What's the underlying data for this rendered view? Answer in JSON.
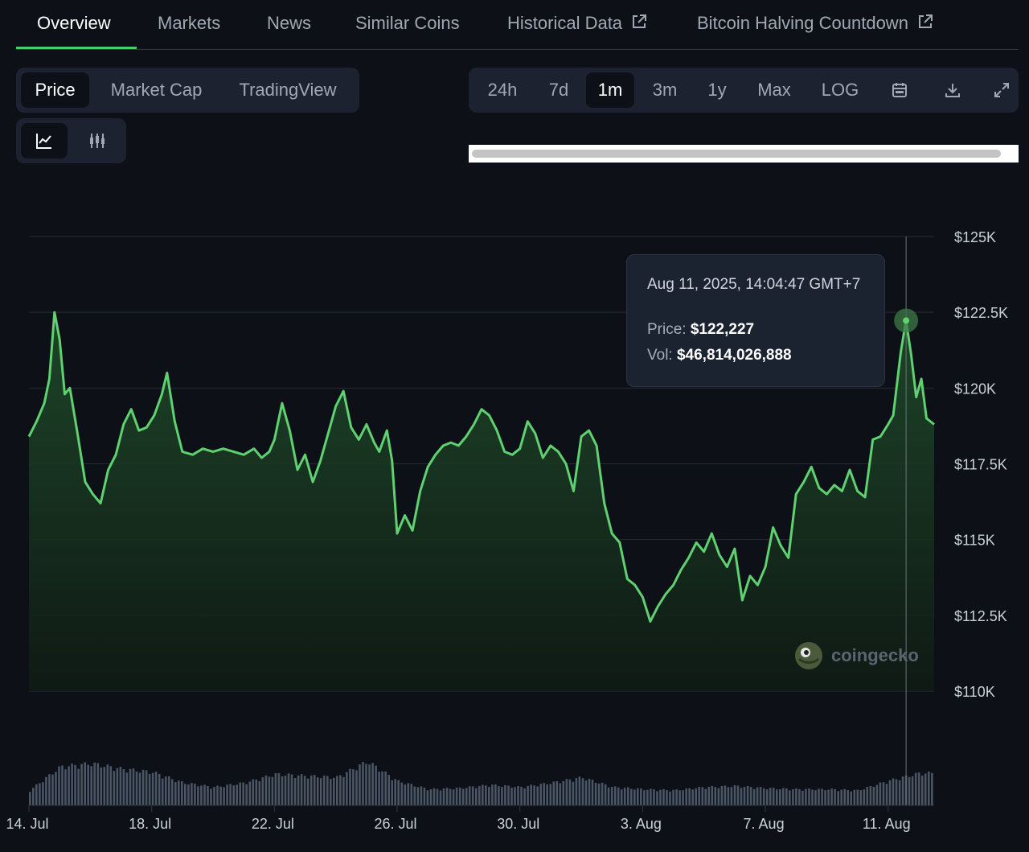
{
  "tabs": [
    {
      "label": "Overview",
      "active": true,
      "external": false
    },
    {
      "label": "Markets",
      "active": false,
      "external": false
    },
    {
      "label": "News",
      "active": false,
      "external": false
    },
    {
      "label": "Similar Coins",
      "active": false,
      "external": false
    },
    {
      "label": "Historical Data",
      "active": false,
      "external": true
    },
    {
      "label": "Bitcoin Halving Countdown",
      "active": false,
      "external": true
    }
  ],
  "chart_mode": {
    "options": [
      "Price",
      "Market Cap",
      "TradingView"
    ],
    "selected": "Price"
  },
  "chart_style": {
    "options": [
      "line-chart-icon",
      "candlestick-icon"
    ],
    "selected": "line-chart-icon"
  },
  "ranges": {
    "options": [
      "24h",
      "7d",
      "1m",
      "3m",
      "1y",
      "Max",
      "LOG"
    ],
    "selected": "1m",
    "icons": [
      "calendar-icon",
      "download-icon",
      "expand-icon"
    ]
  },
  "tooltip": {
    "date": "Aug 11, 2025, 14:04:47 GMT+7",
    "price_label": "Price:",
    "price_value": "$122,227",
    "vol_label": "Vol:",
    "vol_value": "$46,814,026,888"
  },
  "watermark": "coingecko",
  "colors": {
    "line": "#5fd170",
    "area_top": "#1f4a2a",
    "area_bottom": "#0f1a14",
    "background": "#0d1117",
    "volume": "#4a5566"
  },
  "chart_data": {
    "type": "area",
    "title": "",
    "xlabel": "",
    "ylabel": "",
    "currency": "USD",
    "ylim": [
      110000,
      125000
    ],
    "yticks": [
      110000,
      112500,
      115000,
      117500,
      120000,
      122500,
      125000
    ],
    "ytick_labels": [
      "$110K",
      "$112.5K",
      "$115K",
      "$117.5K",
      "$120K",
      "$122.5K",
      "$125K"
    ],
    "xlim": [
      "2025-07-14",
      "2025-08-12T12:00"
    ],
    "xticks": [
      "2025-07-14",
      "2025-07-18",
      "2025-07-22",
      "2025-07-26",
      "2025-07-30",
      "2025-08-03",
      "2025-08-07",
      "2025-08-11"
    ],
    "xtick_labels": [
      "14. Jul",
      "18. Jul",
      "22. Jul",
      "26. Jul",
      "30. Jul",
      "3. Aug",
      "7. Aug",
      "11. Aug"
    ],
    "grid": true,
    "series": [
      {
        "values": [
          [
            "2025-07-14T00:00",
            118400
          ],
          [
            "2025-07-14T06:00",
            118900
          ],
          [
            "2025-07-14T12:00",
            119500
          ],
          [
            "2025-07-14T16:00",
            120300
          ],
          [
            "2025-07-14T20:00",
            122500
          ],
          [
            "2025-07-15T00:00",
            121600
          ],
          [
            "2025-07-15T04:00",
            119800
          ],
          [
            "2025-07-15T08:00",
            120000
          ],
          [
            "2025-07-15T14:00",
            118500
          ],
          [
            "2025-07-15T20:00",
            116900
          ],
          [
            "2025-07-16T02:00",
            116500
          ],
          [
            "2025-07-16T08:00",
            116200
          ],
          [
            "2025-07-16T14:00",
            117300
          ],
          [
            "2025-07-16T20:00",
            117800
          ],
          [
            "2025-07-17T02:00",
            118800
          ],
          [
            "2025-07-17T08:00",
            119300
          ],
          [
            "2025-07-17T14:00",
            118600
          ],
          [
            "2025-07-17T20:00",
            118700
          ],
          [
            "2025-07-18T02:00",
            119100
          ],
          [
            "2025-07-18T08:00",
            119800
          ],
          [
            "2025-07-18T12:00",
            120500
          ],
          [
            "2025-07-18T18:00",
            118900
          ],
          [
            "2025-07-19T00:00",
            117900
          ],
          [
            "2025-07-19T08:00",
            117800
          ],
          [
            "2025-07-19T16:00",
            118000
          ],
          [
            "2025-07-20T00:00",
            117900
          ],
          [
            "2025-07-20T08:00",
            118000
          ],
          [
            "2025-07-20T16:00",
            117900
          ],
          [
            "2025-07-21T00:00",
            117800
          ],
          [
            "2025-07-21T08:00",
            118000
          ],
          [
            "2025-07-21T14:00",
            117700
          ],
          [
            "2025-07-21T20:00",
            117900
          ],
          [
            "2025-07-22T00:00",
            118300
          ],
          [
            "2025-07-22T06:00",
            119500
          ],
          [
            "2025-07-22T12:00",
            118600
          ],
          [
            "2025-07-22T18:00",
            117300
          ],
          [
            "2025-07-23T00:00",
            117800
          ],
          [
            "2025-07-23T06:00",
            116900
          ],
          [
            "2025-07-23T12:00",
            117600
          ],
          [
            "2025-07-23T18:00",
            118500
          ],
          [
            "2025-07-24T00:00",
            119400
          ],
          [
            "2025-07-24T06:00",
            119900
          ],
          [
            "2025-07-24T12:00",
            118700
          ],
          [
            "2025-07-24T18:00",
            118300
          ],
          [
            "2025-07-25T00:00",
            118800
          ],
          [
            "2025-07-25T06:00",
            118200
          ],
          [
            "2025-07-25T10:00",
            117900
          ],
          [
            "2025-07-25T16:00",
            118600
          ],
          [
            "2025-07-25T20:00",
            117600
          ],
          [
            "2025-07-26T00:00",
            115200
          ],
          [
            "2025-07-26T06:00",
            115800
          ],
          [
            "2025-07-26T12:00",
            115300
          ],
          [
            "2025-07-26T18:00",
            116600
          ],
          [
            "2025-07-27T00:00",
            117400
          ],
          [
            "2025-07-27T06:00",
            117800
          ],
          [
            "2025-07-27T12:00",
            118100
          ],
          [
            "2025-07-27T18:00",
            118200
          ],
          [
            "2025-07-28T00:00",
            118100
          ],
          [
            "2025-07-28T06:00",
            118400
          ],
          [
            "2025-07-28T12:00",
            118800
          ],
          [
            "2025-07-28T18:00",
            119300
          ],
          [
            "2025-07-29T00:00",
            119100
          ],
          [
            "2025-07-29T06:00",
            118600
          ],
          [
            "2025-07-29T12:00",
            117900
          ],
          [
            "2025-07-29T18:00",
            117800
          ],
          [
            "2025-07-30T00:00",
            118000
          ],
          [
            "2025-07-30T06:00",
            118900
          ],
          [
            "2025-07-30T12:00",
            118500
          ],
          [
            "2025-07-30T18:00",
            117700
          ],
          [
            "2025-07-31T00:00",
            118100
          ],
          [
            "2025-07-31T06:00",
            117900
          ],
          [
            "2025-07-31T12:00",
            117500
          ],
          [
            "2025-07-31T18:00",
            116600
          ],
          [
            "2025-08-01T00:00",
            118400
          ],
          [
            "2025-08-01T06:00",
            118600
          ],
          [
            "2025-08-01T12:00",
            118100
          ],
          [
            "2025-08-01T18:00",
            116200
          ],
          [
            "2025-08-02T00:00",
            115200
          ],
          [
            "2025-08-02T06:00",
            114900
          ],
          [
            "2025-08-02T12:00",
            113700
          ],
          [
            "2025-08-02T18:00",
            113500
          ],
          [
            "2025-08-03T00:00",
            113100
          ],
          [
            "2025-08-03T06:00",
            112300
          ],
          [
            "2025-08-03T12:00",
            112800
          ],
          [
            "2025-08-03T18:00",
            113200
          ],
          [
            "2025-08-04T00:00",
            113500
          ],
          [
            "2025-08-04T06:00",
            114000
          ],
          [
            "2025-08-04T12:00",
            114400
          ],
          [
            "2025-08-04T18:00",
            114900
          ],
          [
            "2025-08-05T00:00",
            114600
          ],
          [
            "2025-08-05T06:00",
            115200
          ],
          [
            "2025-08-05T12:00",
            114500
          ],
          [
            "2025-08-05T18:00",
            114100
          ],
          [
            "2025-08-06T00:00",
            114700
          ],
          [
            "2025-08-06T06:00",
            113000
          ],
          [
            "2025-08-06T12:00",
            113800
          ],
          [
            "2025-08-06T18:00",
            113500
          ],
          [
            "2025-08-07T00:00",
            114100
          ],
          [
            "2025-08-07T06:00",
            115400
          ],
          [
            "2025-08-07T12:00",
            114800
          ],
          [
            "2025-08-07T18:00",
            114400
          ],
          [
            "2025-08-08T00:00",
            116500
          ],
          [
            "2025-08-08T06:00",
            116900
          ],
          [
            "2025-08-08T12:00",
            117400
          ],
          [
            "2025-08-08T18:00",
            116700
          ],
          [
            "2025-08-09T00:00",
            116500
          ],
          [
            "2025-08-09T06:00",
            116800
          ],
          [
            "2025-08-09T12:00",
            116600
          ],
          [
            "2025-08-09T18:00",
            117300
          ],
          [
            "2025-08-10T00:00",
            116600
          ],
          [
            "2025-08-10T06:00",
            116400
          ],
          [
            "2025-08-10T12:00",
            118300
          ],
          [
            "2025-08-10T18:00",
            118400
          ],
          [
            "2025-08-11T00:00",
            118800
          ],
          [
            "2025-08-11T04:00",
            119100
          ],
          [
            "2025-08-11T10:00",
            121200
          ],
          [
            "2025-08-11T14:00",
            122227
          ],
          [
            "2025-08-11T18:00",
            121100
          ],
          [
            "2025-08-11T22:00",
            119700
          ],
          [
            "2025-08-12T02:00",
            120300
          ],
          [
            "2025-08-12T06:00",
            119000
          ],
          [
            "2025-08-12T12:00",
            118800
          ]
        ]
      }
    ],
    "volume": {
      "dates": [
        "2025-07-14",
        "2025-07-15",
        "2025-07-16",
        "2025-07-17",
        "2025-07-18",
        "2025-07-19",
        "2025-07-20",
        "2025-07-21",
        "2025-07-22",
        "2025-07-23",
        "2025-07-24",
        "2025-07-25",
        "2025-07-26",
        "2025-07-27",
        "2025-07-28",
        "2025-07-29",
        "2025-07-30",
        "2025-07-31",
        "2025-08-01",
        "2025-08-02",
        "2025-08-03",
        "2025-08-04",
        "2025-08-05",
        "2025-08-06",
        "2025-08-07",
        "2025-08-08",
        "2025-08-09",
        "2025-08-10",
        "2025-08-11",
        "2025-08-12"
      ],
      "relative": [
        0.28,
        0.72,
        0.78,
        0.68,
        0.62,
        0.42,
        0.34,
        0.42,
        0.58,
        0.55,
        0.52,
        0.82,
        0.45,
        0.3,
        0.32,
        0.38,
        0.34,
        0.42,
        0.52,
        0.34,
        0.3,
        0.28,
        0.34,
        0.36,
        0.32,
        0.3,
        0.3,
        0.28,
        0.46,
        0.6
      ]
    },
    "highlight": {
      "x": "2025-08-11T14:04:47",
      "y": 122227
    }
  }
}
